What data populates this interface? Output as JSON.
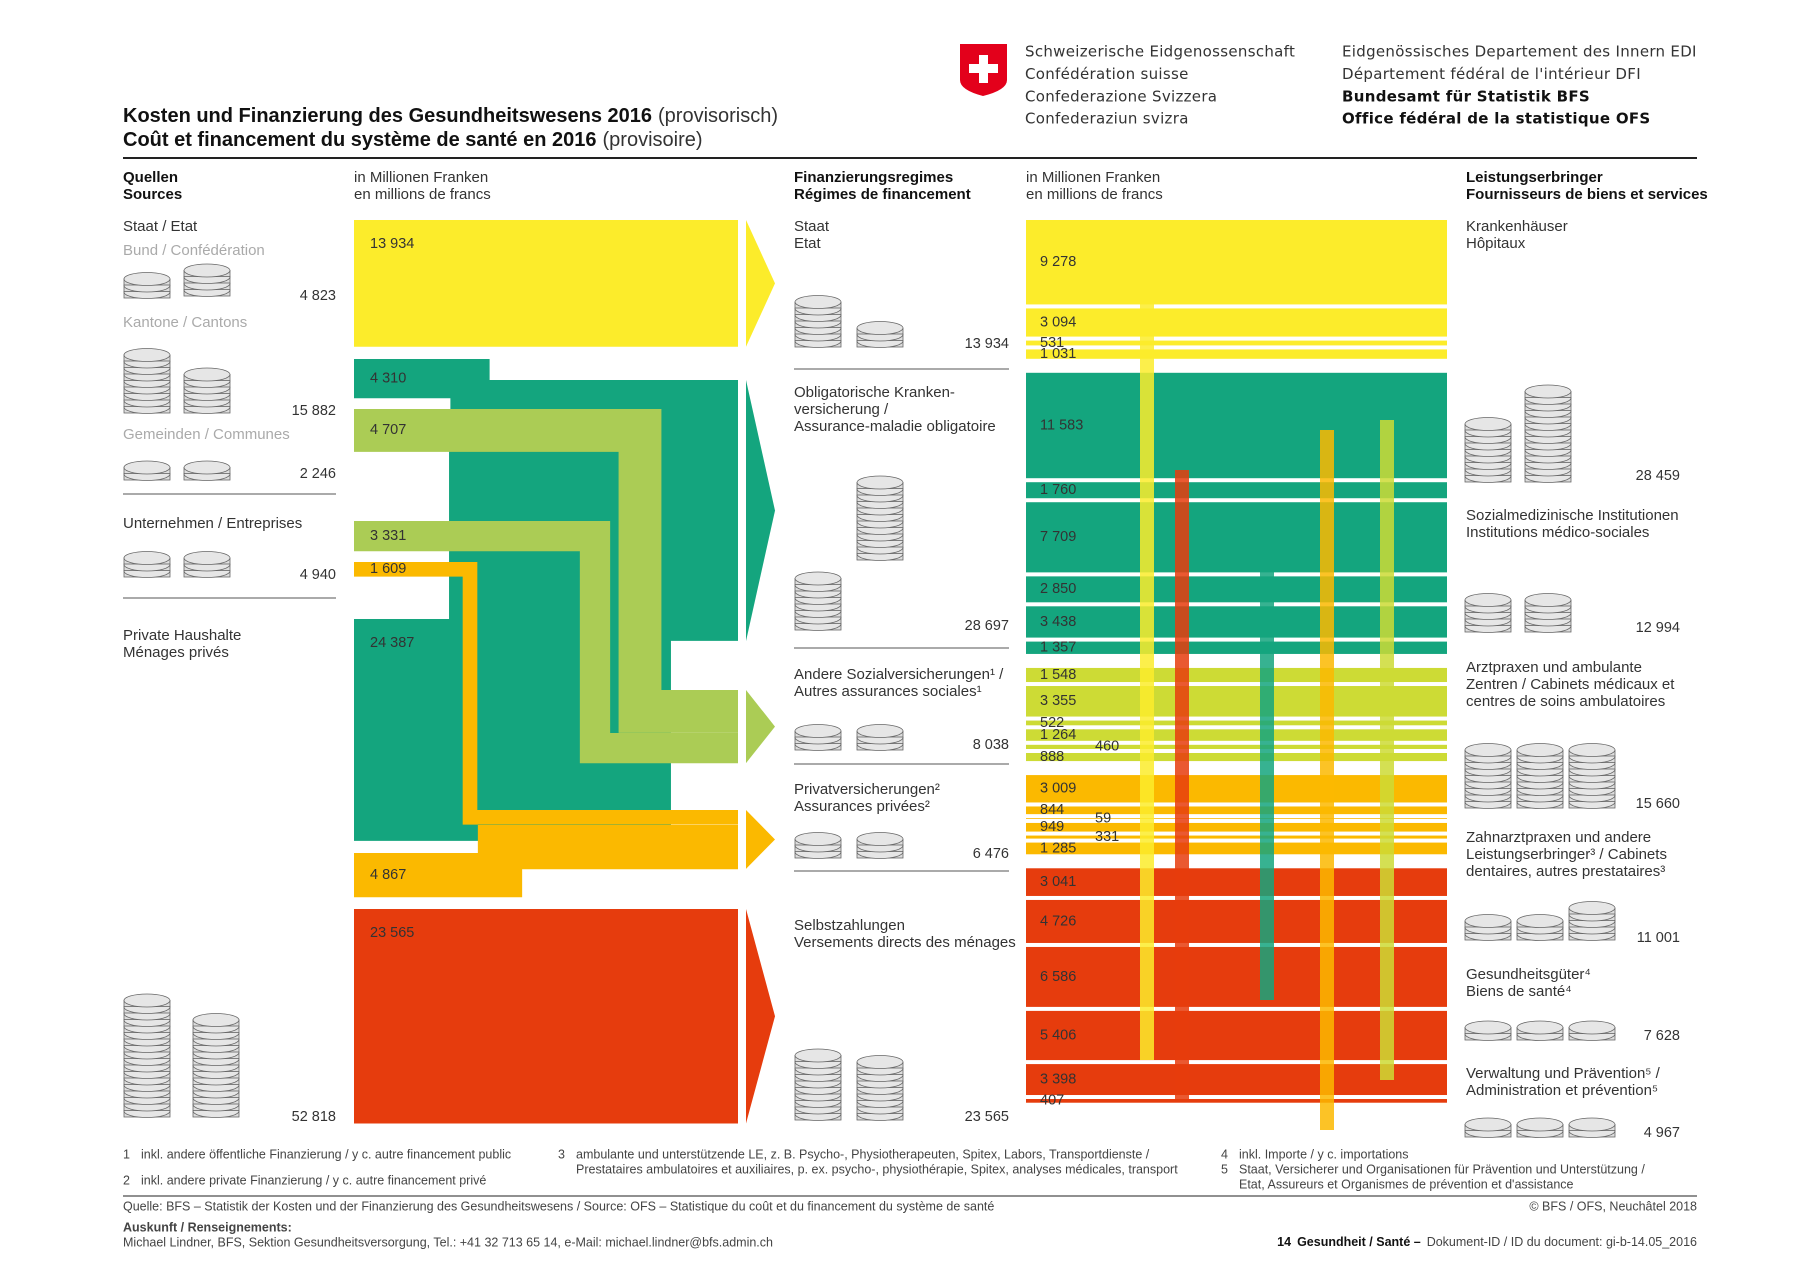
{
  "header": {
    "org": [
      "Schweizerische Eidgenossenschaft",
      "Confédération suisse",
      "Confederazione Svizzera",
      "Confederaziun svizra"
    ],
    "office": [
      "Eidgenössisches Departement des Innern EDI",
      "Département fédéral de l'intérieur DFI",
      "Bundesamt für Statistik BFS",
      "Office fédéral de la statistique OFS"
    ],
    "title": [
      {
        "main": "Kosten und Finanzierung des Gesundheitswesens 2016",
        "note": "(provisorisch)"
      },
      {
        "main": "Coût et financement du système de santé en 2016",
        "note": "(provisoire)"
      }
    ]
  },
  "column_heads": {
    "sources": [
      "Quellen",
      "Sources"
    ],
    "unit_left": [
      "in Millionen Franken",
      "en millions de francs"
    ],
    "regimes": [
      "Finanzierungsregimes",
      "Régimes de financement"
    ],
    "unit_right": [
      "in Millionen Franken",
      "en millions de francs"
    ],
    "providers": [
      "Leistungserbringer",
      "Fournisseurs de biens et services"
    ]
  },
  "sources": {
    "staat_label": "Staat / Etat",
    "items": [
      {
        "label": [
          "Bund / Confédération"
        ],
        "total": {
          "value": 4823,
          "label": "4 823"
        }
      },
      {
        "label": [
          "Kantone / Cantons"
        ],
        "total": {
          "value": 15882,
          "label": "15 882"
        }
      },
      {
        "label": [
          "Gemeinden / Communes"
        ],
        "total": {
          "value": 2246,
          "label": "2 246"
        }
      },
      {
        "label": [
          "Unternehmen / Entreprises"
        ],
        "total": {
          "value": 4940,
          "label": "4 940"
        }
      },
      {
        "label": [
          "Private Haushalte",
          "Ménages privés"
        ],
        "total": {
          "value": 52818,
          "label": "52 818"
        }
      }
    ]
  },
  "source_flows": [
    {
      "value": 13934,
      "label": "13 934",
      "color": "#fcec2b"
    },
    {
      "value": 24387,
      "label": "24 387",
      "color": "#14a57e"
    },
    {
      "value": 4310,
      "label": "4 310",
      "color": "#14a57e"
    },
    {
      "value": 4707,
      "label": "4 707",
      "color": "#abcc55"
    },
    {
      "value": 3331,
      "label": "3 331",
      "color": "#abcc55"
    },
    {
      "value": 1609,
      "label": "1 609",
      "color": "#fbb900"
    },
    {
      "value": 4867,
      "label": "4 867",
      "color": "#fbb900"
    },
    {
      "value": 23565,
      "label": "23 565",
      "color": "#e63c0d"
    }
  ],
  "regimes": [
    {
      "label": [
        "Staat",
        "Etat"
      ],
      "total": {
        "value": 13934,
        "label": "13 934"
      },
      "color": "#fcec2b"
    },
    {
      "label": [
        "Obligatorische Kranken-",
        "versicherung /",
        "Assurance-maladie obligatoire"
      ],
      "total": {
        "value": 28697,
        "label": "28 697"
      },
      "color": "#14a57e"
    },
    {
      "label": [
        "Andere Sozialversicherungen¹ /",
        "Autres assurances sociales¹"
      ],
      "total": {
        "value": 8038,
        "label": "8 038"
      },
      "color": "#abcc55"
    },
    {
      "label": [
        "Privatversicherungen²",
        "Assurances privées²"
      ],
      "total": {
        "value": 6476,
        "label": "6 476"
      },
      "color": "#fbb900"
    },
    {
      "label": [
        "Selbstzahlungen",
        "Versements directs des ménages"
      ],
      "total": {
        "value": 23565,
        "label": "23 565"
      },
      "color": "#e63c0d"
    }
  ],
  "provider_flows": [
    {
      "value": 9278,
      "label": "9 278",
      "color": "#fcec2b"
    },
    {
      "value": 3094,
      "label": "3 094",
      "color": "#fcec2b"
    },
    {
      "value": 531,
      "label": "531",
      "color": "#fcec2b"
    },
    {
      "value": 1031,
      "label": "1 031",
      "color": "#fcec2b"
    },
    {
      "value": 11583,
      "label": "11 583",
      "color": "#14a57e"
    },
    {
      "value": 1760,
      "label": "1 760",
      "color": "#14a57e"
    },
    {
      "value": 7709,
      "label": "7 709",
      "color": "#14a57e"
    },
    {
      "value": 2850,
      "label": "2 850",
      "color": "#14a57e"
    },
    {
      "value": 3438,
      "label": "3 438",
      "color": "#14a57e"
    },
    {
      "value": 1357,
      "label": "1 357",
      "color": "#14a57e"
    },
    {
      "value": 1548,
      "label": "1 548",
      "color": "#cddb35"
    },
    {
      "value": 3355,
      "label": "3 355",
      "color": "#cddb35"
    },
    {
      "value": 522,
      "label": "522",
      "color": "#cddb35"
    },
    {
      "value": 1264,
      "label": "1 264",
      "color": "#cddb35"
    },
    {
      "value": 460,
      "label": "460",
      "color": "#cddb35"
    },
    {
      "value": 888,
      "label": "888",
      "color": "#cddb35"
    },
    {
      "value": 3009,
      "label": "3 009",
      "color": "#fbb900"
    },
    {
      "value": 844,
      "label": "844",
      "color": "#fbb900"
    },
    {
      "value": 59,
      "label": "59",
      "color": "#fbb900"
    },
    {
      "value": 949,
      "label": "949",
      "color": "#fbb900"
    },
    {
      "value": 331,
      "label": "331",
      "color": "#fbb900"
    },
    {
      "value": 1285,
      "label": "1 285",
      "color": "#fbb900"
    },
    {
      "value": 3041,
      "label": "3 041",
      "color": "#e63c0d"
    },
    {
      "value": 4726,
      "label": "4 726",
      "color": "#e63c0d"
    },
    {
      "value": 6586,
      "label": "6 586",
      "color": "#e63c0d"
    },
    {
      "value": 5406,
      "label": "5 406",
      "color": "#e63c0d"
    },
    {
      "value": 3398,
      "label": "3 398",
      "color": "#e63c0d"
    },
    {
      "value": 407,
      "label": "407",
      "color": "#e63c0d"
    }
  ],
  "providers": [
    {
      "label": [
        "Krankenhäuser",
        "Hôpitaux"
      ],
      "total": {
        "value": 28459,
        "label": "28 459"
      }
    },
    {
      "label": [
        "Sozialmedizinische Institutionen",
        "Institutions médico-sociales"
      ],
      "total": {
        "value": 12994,
        "label": "12 994"
      }
    },
    {
      "label": [
        "Arztpraxen und ambulante",
        "Zentren / Cabinets médicaux et",
        "centres de soins ambulatoires"
      ],
      "total": {
        "value": 15660,
        "label": "15 660"
      }
    },
    {
      "label": [
        "Zahnarztpraxen und andere",
        "Leistungserbringer³ / Cabinets",
        "dentaires, autres prestataires³"
      ],
      "total": {
        "value": 11001,
        "label": "11 001"
      }
    },
    {
      "label": [
        "Gesundheitsgüter⁴",
        "Biens de santé⁴"
      ],
      "total": {
        "value": 7628,
        "label": "7 628"
      }
    },
    {
      "label": [
        "Verwaltung und Prävention⁵ /",
        "Administration et prévention⁵"
      ],
      "total": {
        "value": 4967,
        "label": "4 967"
      }
    }
  ],
  "footnotes": [
    {
      "n": "1",
      "text": [
        "inkl. andere öffentliche Finanzierung / y c. autre financement public"
      ]
    },
    {
      "n": "2",
      "text": [
        "inkl. andere private Finanzierung / y c. autre financement privé"
      ]
    },
    {
      "n": "3",
      "text": [
        "ambulante und unterstützende LE, z. B. Psycho-, Physiotherapeuten, Spitex, Labors, Transportdienste /",
        "Prestataires ambulatoires et auxiliaires, p. ex. psycho-, physiothérapie, Spitex, analyses médicales, transport"
      ]
    },
    {
      "n": "4",
      "text": [
        "inkl. Importe / y c. importations"
      ]
    },
    {
      "n": "5",
      "text": [
        "Staat, Versicherer und Organisationen für Prävention und Unterstützung /",
        "Etat, Assureurs et Organismes de prévention et d'assistance"
      ]
    }
  ],
  "source_note": "Quelle: BFS – Statistik der Kosten und der Finanzierung des Gesundheitswesens  /  Source: OFS – Statistique du coût et du financement du système de santé",
  "copyright": "© BFS / OFS, Neuchâtel 2018",
  "contact": {
    "heading": "Auskunft / Renseignements:",
    "text": "Michael Lindner, BFS, Sektion Gesundheitsversorgung, Tel.: +41 32 713 65 14, e-Mail: michael.lindner@bfs.admin.ch"
  },
  "page_footer": {
    "page": "14",
    "section": "Gesundheit / Santé –",
    "docid": "Dokument-ID / ID du document: gi-b-14.05_2016"
  }
}
